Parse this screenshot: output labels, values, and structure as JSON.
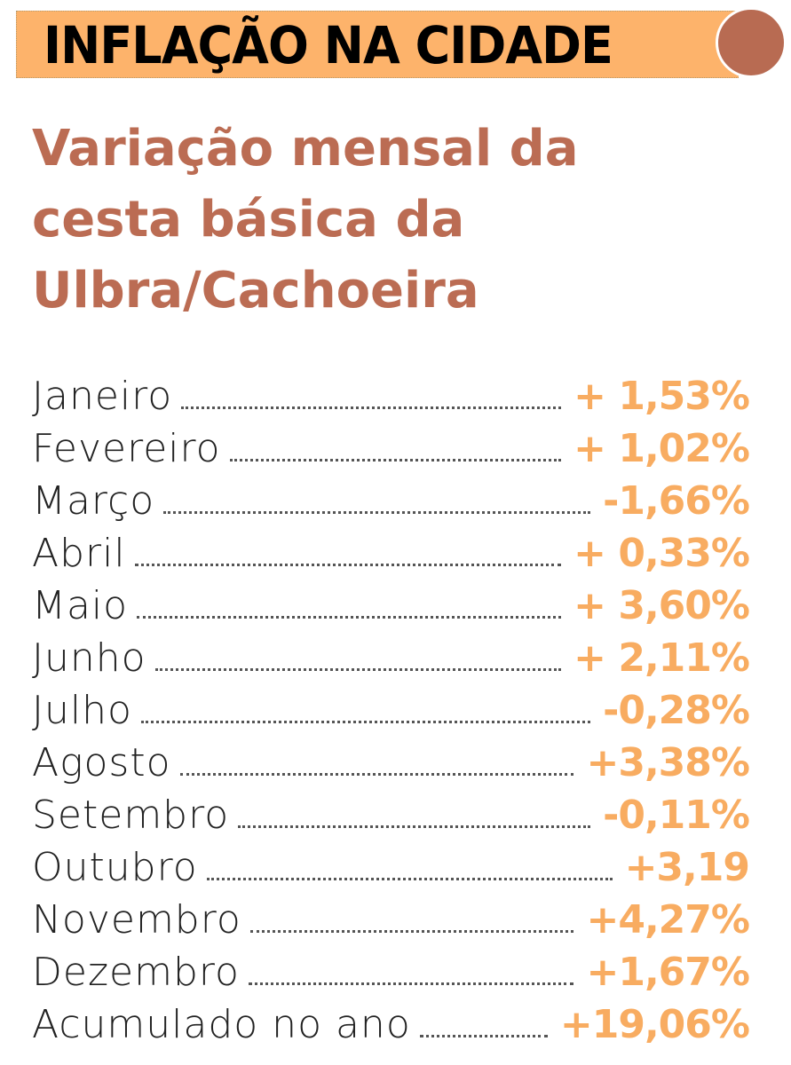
{
  "header": {
    "title": "INFLAÇÃO NA CIDADE",
    "accent_color": "#fdb36b",
    "circle_color": "#b86b52"
  },
  "title": {
    "lines": [
      "Variação mensal da",
      "cesta básica da",
      "Ulbra/Cachoeira"
    ],
    "color": "#bb6c53"
  },
  "rows": [
    {
      "label": "Janeiro",
      "value": "+ 1,53%"
    },
    {
      "label": "Fevereiro",
      "value": "+ 1,02%"
    },
    {
      "label": "Março",
      "value": "-1,66%"
    },
    {
      "label": "Abril",
      "value": "+ 0,33%"
    },
    {
      "label": "Maio",
      "value": "+ 3,60%"
    },
    {
      "label": "Junho",
      "value": "+ 2,11%"
    },
    {
      "label": "Julho",
      "value": "-0,28%"
    },
    {
      "label": "Agosto",
      "value": "+3,38%"
    },
    {
      "label": "Setembro",
      "value": "-0,11%"
    },
    {
      "label": "Outubro",
      "value": "+3,19"
    },
    {
      "label": "Novembro",
      "value": "+4,27%"
    },
    {
      "label": "Dezembro",
      "value": "+1,67%"
    },
    {
      "label": "Acumulado no ano",
      "value": "+19,06%"
    }
  ],
  "value_color": "#f8ac61"
}
